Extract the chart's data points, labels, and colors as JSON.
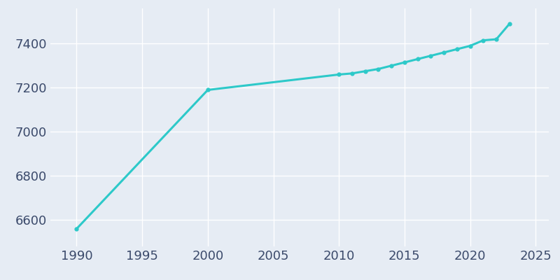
{
  "years": [
    1990,
    2000,
    2010,
    2011,
    2012,
    2013,
    2014,
    2015,
    2016,
    2017,
    2018,
    2019,
    2020,
    2021,
    2022,
    2023
  ],
  "population": [
    6560,
    7190,
    7260,
    7265,
    7275,
    7285,
    7300,
    7315,
    7330,
    7345,
    7360,
    7375,
    7390,
    7415,
    7420,
    7490
  ],
  "line_color": "#2dc9c9",
  "bg_color": "#e6ecf4",
  "grid_color": "#ffffff",
  "text_color": "#3b4a6b",
  "xlim": [
    1988,
    2026
  ],
  "ylim": [
    6480,
    7560
  ],
  "xticks": [
    1990,
    1995,
    2000,
    2005,
    2010,
    2015,
    2020,
    2025
  ],
  "yticks": [
    6600,
    6800,
    7000,
    7200,
    7400
  ],
  "line_width": 2.2,
  "marker": "o",
  "marker_size": 3.5,
  "tick_labelsize": 13
}
